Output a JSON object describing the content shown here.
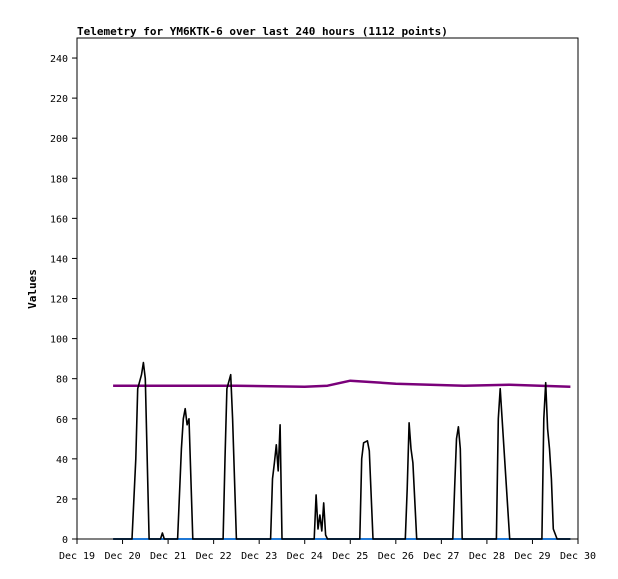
{
  "chart_data": {
    "type": "line",
    "title": "Telemetry for YM6KTK-6 over last 240 hours (1112 points)",
    "xlabel": "",
    "ylabel": "Values",
    "x_ticks": [
      "Dec 19",
      "Dec 20",
      "Dec 21",
      "Dec 22",
      "Dec 23",
      "Dec 24",
      "Dec 25",
      "Dec 26",
      "Dec 27",
      "Dec 28",
      "Dec 29",
      "Dec 30"
    ],
    "xlim": [
      "Dec 19",
      "Dec 30"
    ],
    "ylim": [
      0,
      250
    ],
    "y_ticks": [
      0,
      20,
      40,
      60,
      80,
      100,
      120,
      140,
      160,
      180,
      200,
      220,
      240
    ],
    "grid": false,
    "colors": {
      "series_dark": "#000000",
      "series_purple": "#7a007a",
      "series_blue": "#1f77d4"
    },
    "series": [
      {
        "color": "#000000",
        "points": [
          [
            "Dec 19 19:00",
            0
          ],
          [
            "Dec 20 05:00",
            0
          ],
          [
            "Dec 20 07:00",
            40
          ],
          [
            "Dec 20 08:00",
            75
          ],
          [
            "Dec 20 10:00",
            82
          ],
          [
            "Dec 20 11:00",
            88
          ],
          [
            "Dec 20 12:00",
            80
          ],
          [
            "Dec 20 14:00",
            0
          ],
          [
            "Dec 20 20:00",
            0
          ],
          [
            "Dec 20 21:00",
            3
          ],
          [
            "Dec 20 22:00",
            0
          ],
          [
            "Dec 21 05:00",
            0
          ],
          [
            "Dec 21 07:00",
            45
          ],
          [
            "Dec 21 08:00",
            60
          ],
          [
            "Dec 21 09:00",
            65
          ],
          [
            "Dec 21 10:00",
            57
          ],
          [
            "Dec 21 11:00",
            60
          ],
          [
            "Dec 21 13:00",
            0
          ],
          [
            "Dec 22 05:00",
            0
          ],
          [
            "Dec 22 06:00",
            40
          ],
          [
            "Dec 22 07:00",
            75
          ],
          [
            "Dec 22 09:00",
            82
          ],
          [
            "Dec 22 10:00",
            60
          ],
          [
            "Dec 22 12:00",
            0
          ],
          [
            "Dec 23 06:00",
            0
          ],
          [
            "Dec 23 07:00",
            30
          ],
          [
            "Dec 23 08:00",
            38
          ],
          [
            "Dec 23 09:00",
            47
          ],
          [
            "Dec 23 10:00",
            34
          ],
          [
            "Dec 23 11:00",
            57
          ],
          [
            "Dec 23 12:00",
            0
          ],
          [
            "Dec 24 05:00",
            0
          ],
          [
            "Dec 24 06:00",
            22
          ],
          [
            "Dec 24 07:00",
            5
          ],
          [
            "Dec 24 08:00",
            12
          ],
          [
            "Dec 24 09:00",
            4
          ],
          [
            "Dec 24 10:00",
            18
          ],
          [
            "Dec 24 11:00",
            2
          ],
          [
            "Dec 24 12:00",
            0
          ],
          [
            "Dec 25 05:00",
            0
          ],
          [
            "Dec 25 06:00",
            40
          ],
          [
            "Dec 25 07:00",
            48
          ],
          [
            "Dec 25 09:00",
            49
          ],
          [
            "Dec 25 10:00",
            44
          ],
          [
            "Dec 25 12:00",
            0
          ],
          [
            "Dec 26 05:00",
            0
          ],
          [
            "Dec 26 06:00",
            25
          ],
          [
            "Dec 26 07:00",
            58
          ],
          [
            "Dec 26 08:00",
            45
          ],
          [
            "Dec 26 09:00",
            38
          ],
          [
            "Dec 26 11:00",
            0
          ],
          [
            "Dec 27 06:00",
            0
          ],
          [
            "Dec 27 07:00",
            25
          ],
          [
            "Dec 27 08:00",
            50
          ],
          [
            "Dec 27 09:00",
            56
          ],
          [
            "Dec 27 10:00",
            45
          ],
          [
            "Dec 27 11:00",
            0
          ],
          [
            "Dec 28 05:00",
            0
          ],
          [
            "Dec 28 06:00",
            60
          ],
          [
            "Dec 28 07:00",
            75
          ],
          [
            "Dec 28 08:00",
            60
          ],
          [
            "Dec 28 10:00",
            30
          ],
          [
            "Dec 28 12:00",
            0
          ],
          [
            "Dec 29 05:00",
            0
          ],
          [
            "Dec 29 06:00",
            60
          ],
          [
            "Dec 29 07:00",
            78
          ],
          [
            "Dec 29 08:00",
            55
          ],
          [
            "Dec 29 09:00",
            45
          ],
          [
            "Dec 29 10:00",
            30
          ],
          [
            "Dec 29 11:00",
            5
          ],
          [
            "Dec 29 13:00",
            0
          ],
          [
            "Dec 29 20:00",
            0
          ]
        ]
      },
      {
        "color": "#7a007a",
        "points": [
          [
            "Dec 19 19:00",
            76.5
          ],
          [
            "Dec 21 00:00",
            76.5
          ],
          [
            "Dec 22 12:00",
            76.5
          ],
          [
            "Dec 24 00:00",
            76.0
          ],
          [
            "Dec 24 12:00",
            76.5
          ],
          [
            "Dec 25 00:00",
            79.0
          ],
          [
            "Dec 26 00:00",
            77.5
          ],
          [
            "Dec 27 12:00",
            76.5
          ],
          [
            "Dec 28 12:00",
            77.0
          ],
          [
            "Dec 29 20:00",
            76.0
          ]
        ]
      },
      {
        "color": "#1f77d4",
        "points": [
          [
            "Dec 19 19:00",
            0
          ],
          [
            "Dec 29 20:00",
            0
          ]
        ]
      }
    ]
  }
}
